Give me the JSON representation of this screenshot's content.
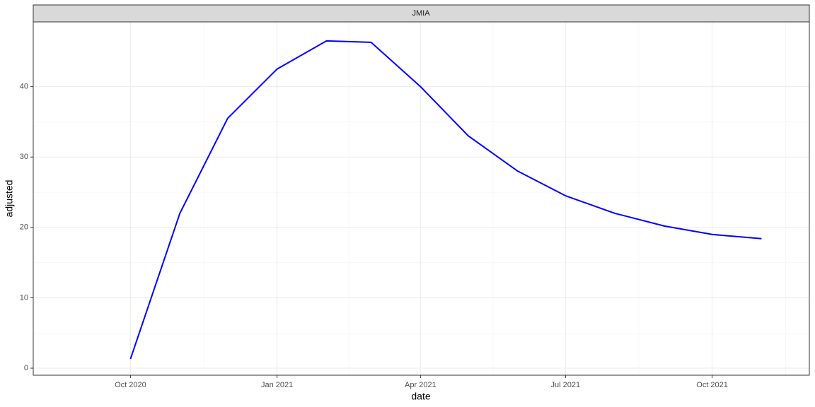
{
  "chart_data": {
    "type": "line",
    "strip_label": "JMIA",
    "x_label": "date",
    "y_label": "adjusted",
    "x": [
      "2020-10",
      "2020-11",
      "2020-12",
      "2021-01",
      "2021-02",
      "2021-03",
      "2021-04",
      "2021-05",
      "2021-06",
      "2021-07",
      "2021-08",
      "2021-09",
      "2021-10",
      "2021-11"
    ],
    "series": [
      {
        "name": "JMIA",
        "color": "#0000ff",
        "values": [
          1.3,
          22,
          35.5,
          42.5,
          46.5,
          46.3,
          40,
          33,
          28,
          24.5,
          22,
          20.2,
          19,
          18.4
        ]
      }
    ],
    "xlim": [
      "2020-08",
      "2021-12"
    ],
    "xticks": [
      {
        "value": "2020-10",
        "label": "Oct 2020"
      },
      {
        "value": "2021-01",
        "label": "Jan 2021"
      },
      {
        "value": "2021-04",
        "label": "Apr 2021"
      },
      {
        "value": "2021-07",
        "label": "Jul 2021"
      },
      {
        "value": "2021-10",
        "label": "Oct 2021"
      }
    ],
    "ylim": [
      -1.0,
      49.2
    ],
    "yticks": [
      0,
      10,
      20,
      30,
      40
    ],
    "grid": true
  }
}
